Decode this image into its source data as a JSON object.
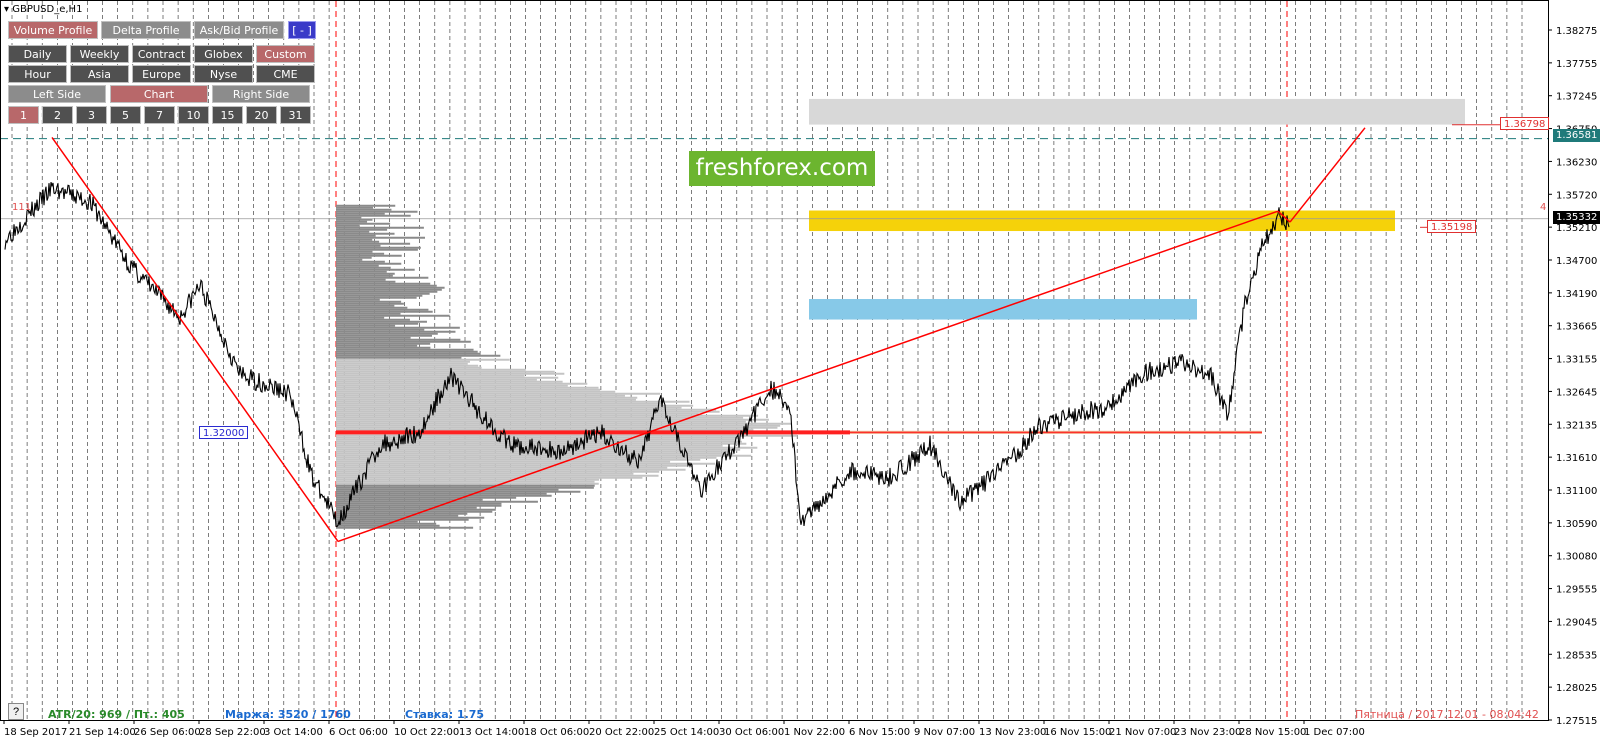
{
  "window": {
    "title": "GBPUSD_e,H1"
  },
  "toolbar": {
    "profile_tabs": [
      {
        "label": "Volume Profile",
        "active": true
      },
      {
        "label": "Delta Profile",
        "active": false
      },
      {
        "label": "Ask/Bid Profile",
        "active": false
      },
      {
        "label": "[ - ]",
        "active": false
      }
    ],
    "period_row": [
      {
        "label": "Daily",
        "active": false
      },
      {
        "label": "Weekly",
        "active": false
      },
      {
        "label": "Contract",
        "active": false
      },
      {
        "label": "Globex",
        "active": false
      },
      {
        "label": "Custom",
        "active": true
      }
    ],
    "session_row": [
      {
        "label": "Hour",
        "active": false
      },
      {
        "label": "Asia",
        "active": false
      },
      {
        "label": "Europe",
        "active": false
      },
      {
        "label": "Nyse",
        "active": false
      },
      {
        "label": "CME",
        "active": false
      }
    ],
    "side_row": [
      {
        "label": "Left Side",
        "active": false
      },
      {
        "label": "Chart",
        "active": true
      },
      {
        "label": "Right Side",
        "active": false
      }
    ],
    "count_row": [
      {
        "label": "1",
        "active": true
      },
      {
        "label": "2",
        "active": false
      },
      {
        "label": "3",
        "active": false
      },
      {
        "label": "5",
        "active": false
      },
      {
        "label": "7",
        "active": false
      },
      {
        "label": "10",
        "active": false
      },
      {
        "label": "15",
        "active": false
      },
      {
        "label": "20",
        "active": false
      },
      {
        "label": "31",
        "active": false
      }
    ]
  },
  "watermark": "freshforex.com",
  "price_axis": {
    "ticks": [
      "1.38275",
      "1.37755",
      "1.37245",
      "1.36750",
      "1.36230",
      "1.35720",
      "1.35210",
      "1.34700",
      "1.34190",
      "1.33665",
      "1.33155",
      "1.32645",
      "1.32135",
      "1.31610",
      "1.31100",
      "1.30590",
      "1.30080",
      "1.29555",
      "1.29045",
      "1.28535",
      "1.28025",
      "1.27515"
    ],
    "current_price": "1.35332",
    "dashed_level": "1.36581",
    "target_label": "1.36798",
    "yellow_zone_label": "1.35198",
    "poc_label": "1.32000"
  },
  "time_axis": {
    "labels": [
      "18 Sep 2017",
      "21 Sep 14:00",
      "26 Sep 06:00",
      "28 Sep 22:00",
      "3 Oct 14:00",
      "6 Oct 06:00",
      "10 Oct 22:00",
      "13 Oct 14:00",
      "18 Oct 06:00",
      "20 Oct 22:00",
      "25 Oct 14:00",
      "30 Oct 06:00",
      "1 Nov 22:00",
      "6 Nov 15:00",
      "9 Nov 07:00",
      "13 Nov 23:00",
      "16 Nov 15:00",
      "21 Nov 07:00",
      "23 Nov 23:00",
      "28 Nov 15:00",
      "1 Dec 07:00"
    ]
  },
  "markers": {
    "left_marker": "111",
    "right_marker": "4"
  },
  "status": {
    "atr": "ATR/20: 969 / Пт.: 405",
    "margin": "Маржа: 3520 / 1760",
    "rate": "Ставка: 1.75",
    "datetime": "Пятница  /  2017.12.01  -  08:04:42"
  },
  "help_label": "?",
  "colors": {
    "price_line": "#000000",
    "trend_line": "#ff0000",
    "yellow_zone": "#f5d20a",
    "blue_zone": "#87c9e8",
    "gray_zone": "#d8d8d8",
    "active_button": "#b8686a",
    "atr_text": "#2a8a2a",
    "margin_text": "#1a6ad0",
    "datetime_text": "#e05050"
  }
}
